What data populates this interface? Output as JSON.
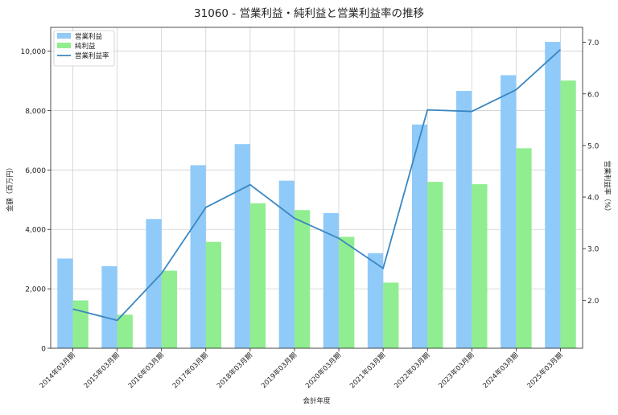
{
  "chart_data": {
    "type": "bar",
    "title": "31060 - 営業利益・純利益と営業利益率の推移",
    "xlabel": "会計年度",
    "ylabel_left": "金額（百万円）",
    "ylabel_right": "営業利益率（%）",
    "categories": [
      "2014年03月期",
      "2015年03月期",
      "2016年03月期",
      "2017年03月期",
      "2018年03月期",
      "2019年03月期",
      "2020年03月期",
      "2021年03月期",
      "2022年03月期",
      "2023年03月期",
      "2024年03月期",
      "2025年03月期"
    ],
    "series": [
      {
        "name": "営業利益",
        "kind": "bar",
        "axis": "left",
        "color": "#90caf9",
        "values": [
          3020,
          2760,
          4350,
          6160,
          6870,
          5640,
          4550,
          3200,
          7530,
          8660,
          9190,
          10310
        ]
      },
      {
        "name": "純利益",
        "kind": "bar",
        "axis": "left",
        "color": "#90ee90",
        "values": [
          1610,
          1130,
          2610,
          3580,
          4880,
          4650,
          3750,
          2210,
          5600,
          5520,
          6730,
          9010
        ]
      },
      {
        "name": "営業利益率",
        "kind": "line",
        "axis": "right",
        "color": "#3a86c0",
        "values": [
          1.83,
          1.61,
          2.52,
          3.8,
          4.24,
          3.59,
          3.2,
          2.62,
          5.69,
          5.66,
          6.08,
          6.86
        ]
      }
    ],
    "ylim_left": [
      0,
      10800
    ],
    "yticks_left": [
      0,
      2000,
      4000,
      6000,
      8000,
      10000
    ],
    "ytick_labels_left": [
      "0",
      "2,000",
      "4,000",
      "6,000",
      "8,000",
      "10,000"
    ],
    "ylim_right": [
      1.07,
      7.29
    ],
    "yticks_right": [
      2.0,
      3.0,
      4.0,
      5.0,
      6.0,
      7.0
    ],
    "ytick_labels_right": [
      "2.0",
      "3.0",
      "4.0",
      "5.0",
      "6.0",
      "7.0"
    ],
    "legend_position": "top-left",
    "grid": true
  }
}
